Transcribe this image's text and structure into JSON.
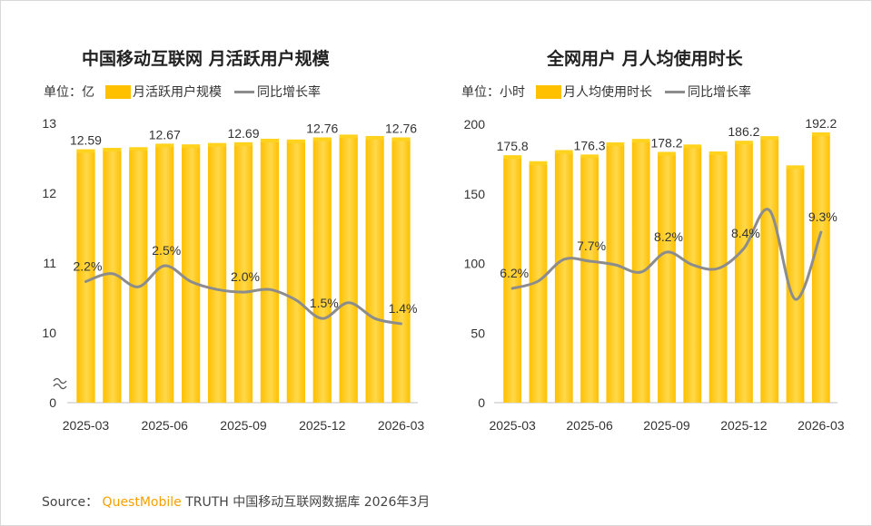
{
  "chart_data": [
    {
      "type": "bar",
      "title": "中国移动互联网 月活跃用户规模",
      "unit_label": "单位：亿",
      "bar_legend": "月活跃用户规模",
      "line_legend": "同比增长率",
      "x_tick_labels": [
        "2025-03",
        "2025-06",
        "2025-09",
        "2025-12",
        "2026-03"
      ],
      "y_tick_labels": [
        "0",
        "10",
        "11",
        "12",
        "13"
      ],
      "axis_break": true,
      "ylim": [
        0,
        13
      ],
      "bar_values": [
        12.59,
        12.61,
        12.62,
        12.67,
        12.66,
        12.68,
        12.69,
        12.74,
        12.73,
        12.76,
        12.8,
        12.78,
        12.76
      ],
      "bar_labels": [
        {
          "index": 0,
          "text": "12.59"
        },
        {
          "index": 3,
          "text": "12.67"
        },
        {
          "index": 6,
          "text": "12.69"
        },
        {
          "index": 9,
          "text": "12.76"
        },
        {
          "index": 12,
          "text": "12.76"
        }
      ],
      "growth_rate_percent": [
        2.2,
        2.35,
        2.1,
        2.5,
        2.2,
        2.05,
        2.0,
        2.05,
        1.85,
        1.5,
        1.8,
        1.5,
        1.4
      ],
      "growth_labels": [
        {
          "index": 0,
          "text": "2.2%"
        },
        {
          "index": 3,
          "text": "2.5%"
        },
        {
          "index": 6,
          "text": "2.0%"
        },
        {
          "index": 9,
          "text": "1.5%"
        },
        {
          "index": 12,
          "text": "1.4%"
        }
      ]
    },
    {
      "type": "bar",
      "title": "全网用户 月人均使用时长",
      "unit_label": "单位：小时",
      "bar_legend": "月人均使用时长",
      "line_legend": "同比增长率",
      "x_tick_labels": [
        "2025-03",
        "2025-06",
        "2025-09",
        "2025-12",
        "2026-03"
      ],
      "y_tick_labels": [
        "0",
        "50",
        "100",
        "150",
        "200"
      ],
      "ylim": [
        0,
        200
      ],
      "bar_values": [
        175.8,
        171.5,
        179.5,
        176.3,
        185.0,
        187.5,
        178.2,
        183.5,
        178.5,
        186.2,
        189.5,
        168.5,
        192.2
      ],
      "bar_labels": [
        {
          "index": 0,
          "text": "175.8"
        },
        {
          "index": 3,
          "text": "176.3"
        },
        {
          "index": 6,
          "text": "178.2"
        },
        {
          "index": 9,
          "text": "186.2"
        },
        {
          "index": 12,
          "text": "192.2"
        }
      ],
      "growth_rate_percent": [
        6.2,
        6.6,
        7.8,
        7.7,
        7.5,
        7.1,
        8.2,
        7.5,
        7.3,
        8.4,
        10.5,
        5.6,
        9.3
      ],
      "growth_labels": [
        {
          "index": 0,
          "text": "6.2%"
        },
        {
          "index": 3,
          "text": "7.7%"
        },
        {
          "index": 6,
          "text": "8.2%"
        },
        {
          "index": 9,
          "text": "8.4%"
        },
        {
          "index": 12,
          "text": "9.3%"
        }
      ]
    }
  ],
  "source": {
    "prefix": "Source：",
    "brand": "QuestMobile",
    "text": "TRUTH 中国移动互联网数据库 2026年3月"
  },
  "colors": {
    "bar": "#ffc000",
    "bar_light": "#ffd84a",
    "line": "#8c8c8c"
  }
}
